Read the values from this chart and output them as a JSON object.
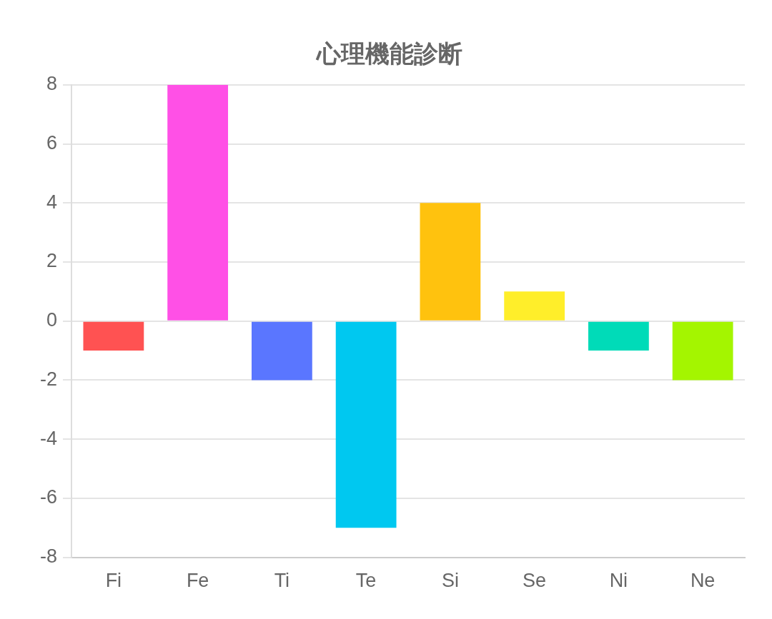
{
  "chart_data": {
    "type": "bar",
    "title": "心理機能診断",
    "categories": [
      "Fi",
      "Fe",
      "Ti",
      "Te",
      "Si",
      "Se",
      "Ni",
      "Ne"
    ],
    "values": [
      -1,
      8,
      -2,
      -7,
      4,
      1,
      -1,
      -2
    ],
    "colors": [
      "#ff5252",
      "#ff50e6",
      "#5a76ff",
      "#00c8f0",
      "#ffc20e",
      "#ffee2a",
      "#00dbb8",
      "#a4f500"
    ],
    "ylim": [
      -8,
      8
    ],
    "yticks": [
      -8,
      -6,
      -4,
      -2,
      0,
      2,
      4,
      6,
      8
    ],
    "grid": "y",
    "legend": false
  }
}
